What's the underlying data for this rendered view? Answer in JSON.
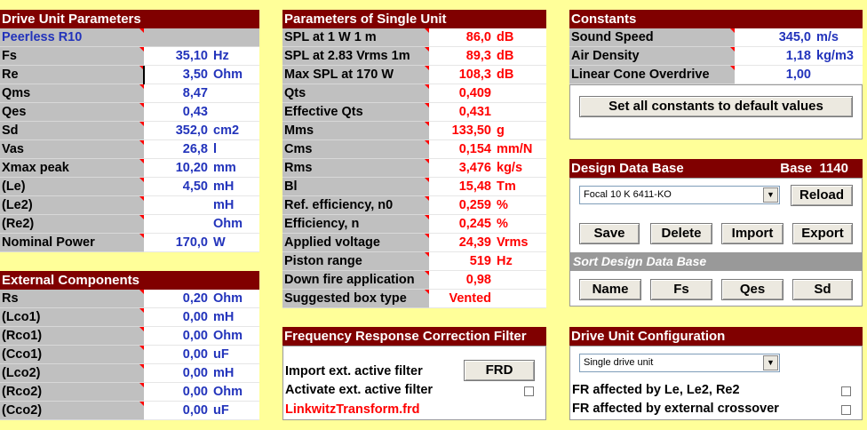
{
  "drive_unit": {
    "title": "Drive Unit Parameters",
    "model": "Peerless R10",
    "rows": [
      {
        "label": "Fs",
        "value": "35,10",
        "unit": "Hz"
      },
      {
        "label": "Re",
        "value": "3,50",
        "unit": "Ohm"
      },
      {
        "label": "Qms",
        "value": "8,47",
        "unit": ""
      },
      {
        "label": "Qes",
        "value": "0,43",
        "unit": ""
      },
      {
        "label": "Sd",
        "value": "352,0",
        "unit": "cm2"
      },
      {
        "label": "Vas",
        "value": "26,8",
        "unit": "l"
      },
      {
        "label": "Xmax peak",
        "value": "10,20",
        "unit": "mm"
      },
      {
        "label": "(Le)",
        "value": "4,50",
        "unit": "mH"
      },
      {
        "label": "(Le2)",
        "value": "",
        "unit": "mH"
      },
      {
        "label": "(Re2)",
        "value": "",
        "unit": "Ohm"
      },
      {
        "label": "Nominal Power",
        "value": "170,0",
        "unit": "W"
      }
    ]
  },
  "external": {
    "title": "External Components",
    "rows": [
      {
        "label": "Rs",
        "value": "0,20",
        "unit": "Ohm"
      },
      {
        "label": "(Lco1)",
        "value": "0,00",
        "unit": "mH"
      },
      {
        "label": "(Rco1)",
        "value": "0,00",
        "unit": "Ohm"
      },
      {
        "label": "(Cco1)",
        "value": "0,00",
        "unit": "uF"
      },
      {
        "label": "(Lco2)",
        "value": "0,00",
        "unit": "mH"
      },
      {
        "label": "(Rco2)",
        "value": "0,00",
        "unit": "Ohm"
      },
      {
        "label": "(Cco2)",
        "value": "0,00",
        "unit": "uF"
      }
    ]
  },
  "single_unit": {
    "title": "Parameters of Single Unit",
    "rows": [
      {
        "label": "SPL at 1 W 1 m",
        "value": "86,0",
        "unit": "dB"
      },
      {
        "label": "SPL at 2.83 Vrms 1m",
        "value": "89,3",
        "unit": "dB"
      },
      {
        "label": "Max SPL at 170 W",
        "value": "108,3",
        "unit": "dB"
      },
      {
        "label": "Qts",
        "value": "0,409",
        "unit": ""
      },
      {
        "label": "Effective Qts",
        "value": "0,431",
        "unit": ""
      },
      {
        "label": "Mms",
        "value": "133,50",
        "unit": "g"
      },
      {
        "label": "Cms",
        "value": "0,154",
        "unit": "mm/N"
      },
      {
        "label": "Rms",
        "value": "3,476",
        "unit": "kg/s"
      },
      {
        "label": "Bl",
        "value": "15,48",
        "unit": "Tm"
      },
      {
        "label": "Ref. efficiency, n0",
        "value": "0,259",
        "unit": "%"
      },
      {
        "label": "Efficiency, n",
        "value": "0,245",
        "unit": "%"
      },
      {
        "label": "Applied voltage",
        "value": "24,39",
        "unit": "Vrms"
      },
      {
        "label": "Piston range",
        "value": "519",
        "unit": "Hz"
      },
      {
        "label": "Down fire application",
        "value": "0,98",
        "unit": ""
      },
      {
        "label": "Suggested box type",
        "value": "Vented",
        "unit": ""
      }
    ]
  },
  "freq_filter": {
    "title": "Frequency Response Correction Filter",
    "import_label": "Import ext. active filter",
    "frd_button": "FRD",
    "activate_label": "Activate ext. active filter",
    "filename": "LinkwitzTransform.frd"
  },
  "constants": {
    "title": "Constants",
    "rows": [
      {
        "label": "Sound Speed",
        "value": "345,0",
        "unit": "m/s"
      },
      {
        "label": "Air Density",
        "value": "1,18",
        "unit": "kg/m3"
      },
      {
        "label": "Linear Cone Overdrive",
        "value": "1,00",
        "unit": ""
      }
    ],
    "default_button": "Set all constants to default values"
  },
  "database": {
    "title": "Design Data Base",
    "base_label": "Base",
    "base_number": "1140",
    "selected": "Focal 10 K 6411-KO",
    "reload": "Reload",
    "save": "Save",
    "delete": "Delete",
    "import": "Import",
    "export": "Export",
    "sort_title": "Sort Design Data Base",
    "sort_buttons": [
      "Name",
      "Fs",
      "Qes",
      "Sd"
    ]
  },
  "configuration": {
    "title": "Drive Unit Configuration",
    "selected": "Single drive unit",
    "fr_le": "FR affected by Le, Le2, Re2",
    "fr_ext": "FR affected by external crossover"
  }
}
